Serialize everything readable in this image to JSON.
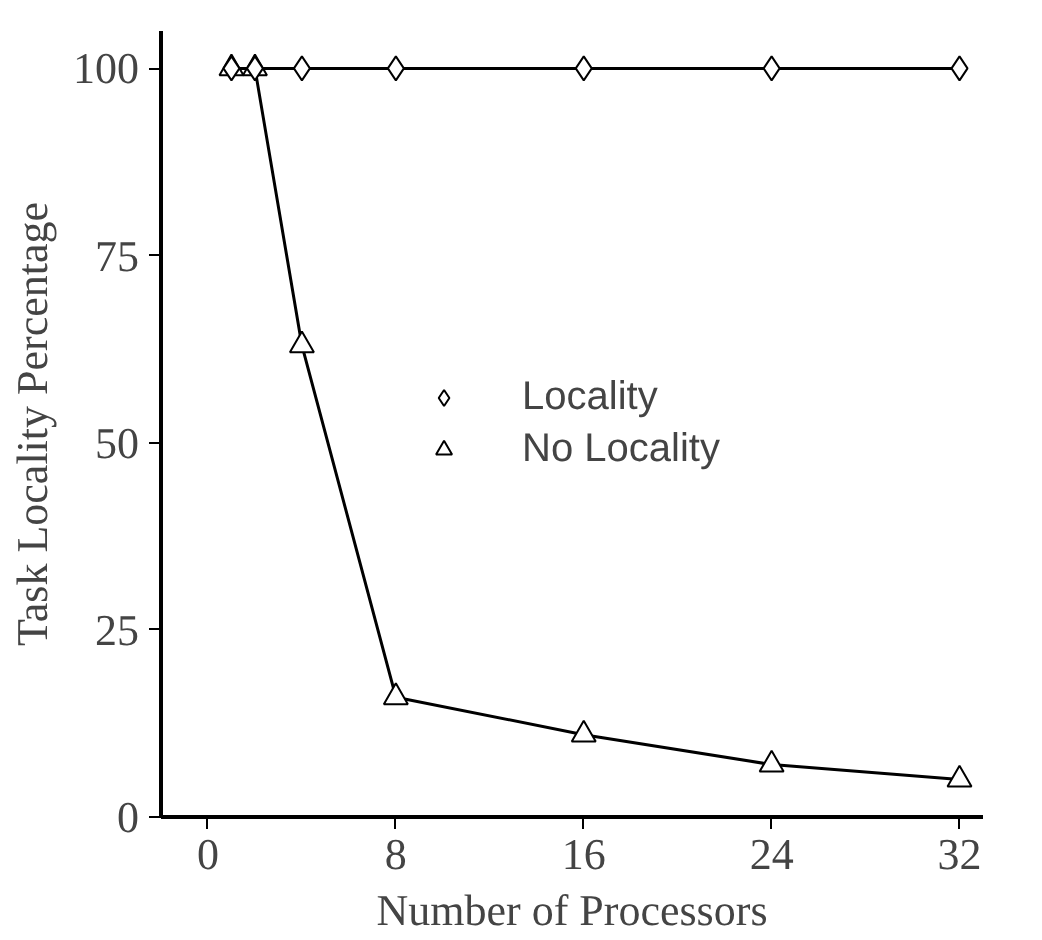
{
  "chart_data": {
    "type": "line",
    "xlabel": "Number of Processors",
    "ylabel": "Task Locality Percentage",
    "x": [
      1,
      2,
      4,
      8,
      16,
      24,
      32
    ],
    "series": [
      {
        "name": "Locality",
        "color": "#000000",
        "marker": "diamond",
        "values": [
          100,
          100,
          100,
          100,
          100,
          100,
          100
        ]
      },
      {
        "name": "No Locality",
        "color": "#000000",
        "marker": "triangle",
        "values": [
          100,
          100,
          63,
          16,
          11,
          7,
          5
        ]
      }
    ],
    "xlim": [
      -2,
      33
    ],
    "ylim": [
      0,
      105
    ],
    "xticks": [
      0,
      8,
      16,
      24,
      32
    ],
    "yticks": [
      0,
      25,
      50,
      75,
      100
    ],
    "grid": false,
    "legend": "center",
    "line_style": "solid"
  }
}
